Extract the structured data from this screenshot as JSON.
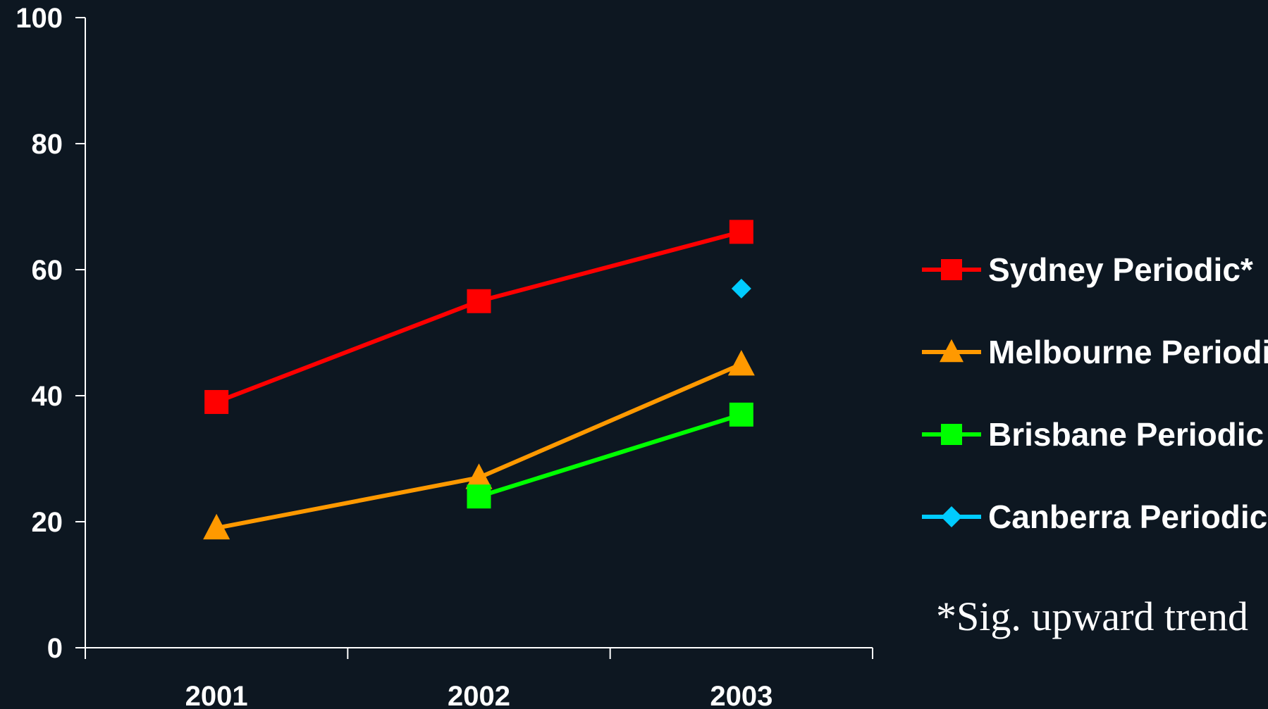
{
  "chart_data": {
    "type": "line",
    "categories": [
      "2001",
      "2002",
      "2003"
    ],
    "ylim": [
      0,
      100
    ],
    "yticks": [
      0,
      20,
      40,
      60,
      80,
      100
    ],
    "grid": false,
    "legend_position": "right",
    "series": [
      {
        "name": "Sydney Periodic*",
        "color": "#ff0000",
        "marker": "square",
        "values": [
          39,
          55,
          66
        ]
      },
      {
        "name": "Melbourne Periodic",
        "color": "#ff9900",
        "marker": "triangle",
        "values": [
          19,
          27,
          45
        ]
      },
      {
        "name": "Brisbane Periodic",
        "color": "#00ff00",
        "marker": "square",
        "values": [
          null,
          24,
          37
        ]
      },
      {
        "name": "Canberra Periodic",
        "color": "#00ccff",
        "marker": "diamond",
        "values": [
          null,
          null,
          57
        ]
      }
    ],
    "annotation": "*Sig. upward trend"
  }
}
